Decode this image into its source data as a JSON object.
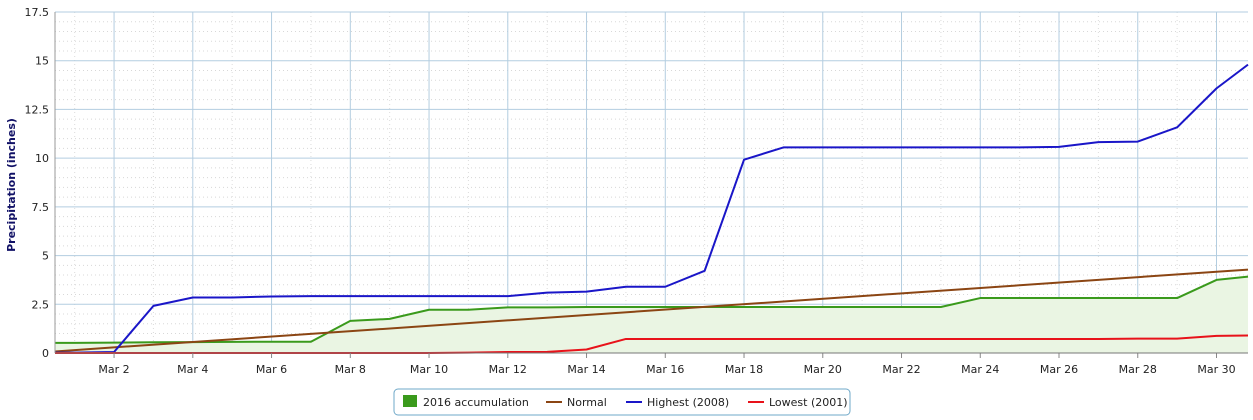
{
  "chart_data": {
    "type": "line",
    "title": "",
    "xlabel": "",
    "ylabel": "Precipitation (inches)",
    "ylim": [
      0,
      17.5
    ],
    "xlim": [
      0.5,
      30.8
    ],
    "grid": true,
    "legend_placement": "bottom-center",
    "x_ticks": [
      {
        "x": 2,
        "label": "Mar 2"
      },
      {
        "x": 4,
        "label": "Mar 4"
      },
      {
        "x": 6,
        "label": "Mar 6"
      },
      {
        "x": 8,
        "label": "Mar 8"
      },
      {
        "x": 10,
        "label": "Mar 10"
      },
      {
        "x": 12,
        "label": "Mar 12"
      },
      {
        "x": 14,
        "label": "Mar 14"
      },
      {
        "x": 16,
        "label": "Mar 16"
      },
      {
        "x": 18,
        "label": "Mar 18"
      },
      {
        "x": 20,
        "label": "Mar 20"
      },
      {
        "x": 22,
        "label": "Mar 22"
      },
      {
        "x": 24,
        "label": "Mar 24"
      },
      {
        "x": 26,
        "label": "Mar 26"
      },
      {
        "x": 28,
        "label": "Mar 28"
      },
      {
        "x": 30,
        "label": "Mar 30"
      }
    ],
    "y_ticks": [
      {
        "y": 0,
        "label": "0"
      },
      {
        "y": 2.5,
        "label": "2.5"
      },
      {
        "y": 5,
        "label": "5"
      },
      {
        "y": 7.5,
        "label": "7.5"
      },
      {
        "y": 10,
        "label": "10"
      },
      {
        "y": 12.5,
        "label": "12.5"
      },
      {
        "y": 15,
        "label": "15"
      },
      {
        "y": 17.5,
        "label": "17.5"
      }
    ],
    "series": [
      {
        "name": "2016 accumulation",
        "kind": "area",
        "color": "#3a9a1c",
        "fill": "#eaf5e3",
        "x": [
          0.5,
          1,
          2,
          3,
          4,
          5,
          6,
          7,
          8,
          9,
          10,
          11,
          12,
          13,
          14,
          15,
          16,
          17,
          18,
          19,
          20,
          21,
          22,
          23,
          24,
          25,
          26,
          27,
          28,
          29,
          30,
          30.8
        ],
        "y": [
          0.52,
          0.52,
          0.53,
          0.55,
          0.56,
          0.57,
          0.58,
          0.58,
          1.65,
          1.75,
          2.22,
          2.22,
          2.34,
          2.34,
          2.36,
          2.36,
          2.36,
          2.36,
          2.36,
          2.36,
          2.36,
          2.36,
          2.36,
          2.36,
          2.82,
          2.82,
          2.82,
          2.82,
          2.82,
          2.82,
          3.75,
          3.92
        ]
      },
      {
        "name": "Normal",
        "kind": "line",
        "color": "#8b4513",
        "x": [
          0.5,
          30.8
        ],
        "y": [
          0.08,
          4.28
        ]
      },
      {
        "name": "Highest (2008)",
        "kind": "line",
        "color": "#1a16c8",
        "x": [
          0.5,
          1,
          2,
          3,
          4,
          5,
          6,
          7,
          8,
          9,
          10,
          11,
          12,
          13,
          14,
          15,
          16,
          17,
          18,
          19,
          20,
          21,
          22,
          23,
          24,
          25,
          26,
          27,
          28,
          29,
          30,
          30.8
        ],
        "y": [
          0.02,
          0.02,
          0.05,
          2.42,
          2.85,
          2.85,
          2.9,
          2.92,
          2.92,
          2.92,
          2.92,
          2.92,
          2.92,
          3.1,
          3.15,
          3.4,
          3.4,
          4.22,
          9.92,
          10.55,
          10.55,
          10.55,
          10.55,
          10.55,
          10.55,
          10.55,
          10.58,
          10.82,
          10.85,
          11.58,
          13.58,
          14.8
        ]
      },
      {
        "name": "Lowest (2001)",
        "kind": "line",
        "color": "#e8121a",
        "x": [
          0.5,
          1,
          2,
          3,
          4,
          5,
          6,
          7,
          8,
          9,
          10,
          11,
          12,
          13,
          14,
          15,
          16,
          17,
          18,
          19,
          20,
          21,
          22,
          23,
          24,
          25,
          26,
          27,
          28,
          29,
          30,
          30.8
        ],
        "y": [
          0,
          0,
          0,
          0,
          0,
          0,
          0,
          0,
          0,
          0,
          0,
          0.02,
          0.05,
          0.06,
          0.18,
          0.72,
          0.72,
          0.72,
          0.72,
          0.72,
          0.72,
          0.72,
          0.72,
          0.72,
          0.72,
          0.72,
          0.72,
          0.72,
          0.74,
          0.74,
          0.88,
          0.9
        ]
      }
    ]
  }
}
